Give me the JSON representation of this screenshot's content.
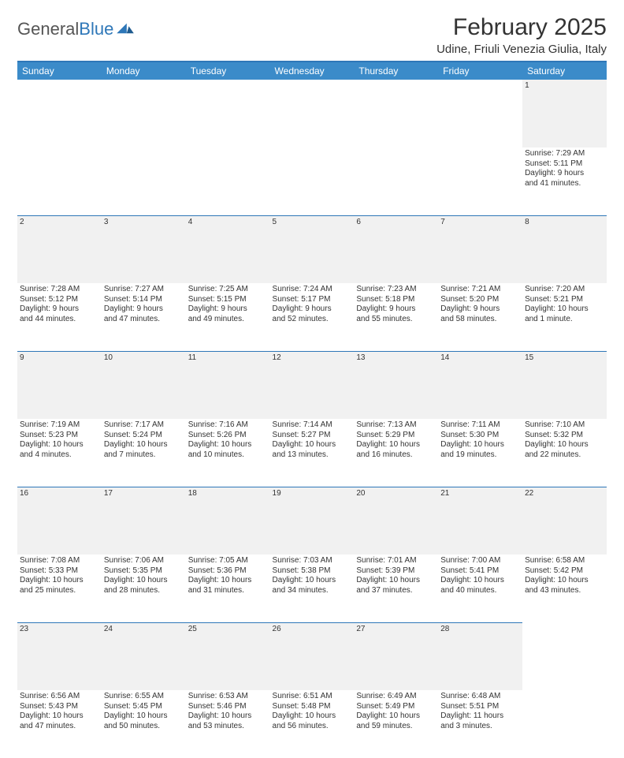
{
  "logo": {
    "text_gray": "General",
    "text_blue": "Blue"
  },
  "header": {
    "title": "February 2025",
    "location": "Udine, Friuli Venezia Giulia, Italy"
  },
  "colors": {
    "header_bar": "#3b8bc9",
    "divider": "#2e77b8",
    "daynum_bg": "#f1f1f1",
    "text": "#333333"
  },
  "weekdays": [
    "Sunday",
    "Monday",
    "Tuesday",
    "Wednesday",
    "Thursday",
    "Friday",
    "Saturday"
  ],
  "weeks": [
    {
      "nums": [
        "",
        "",
        "",
        "",
        "",
        "",
        "1"
      ],
      "cells": [
        null,
        null,
        null,
        null,
        null,
        null,
        {
          "sunrise": "Sunrise: 7:29 AM",
          "sunset": "Sunset: 5:11 PM",
          "day1": "Daylight: 9 hours",
          "day2": "and 41 minutes."
        }
      ]
    },
    {
      "nums": [
        "2",
        "3",
        "4",
        "5",
        "6",
        "7",
        "8"
      ],
      "cells": [
        {
          "sunrise": "Sunrise: 7:28 AM",
          "sunset": "Sunset: 5:12 PM",
          "day1": "Daylight: 9 hours",
          "day2": "and 44 minutes."
        },
        {
          "sunrise": "Sunrise: 7:27 AM",
          "sunset": "Sunset: 5:14 PM",
          "day1": "Daylight: 9 hours",
          "day2": "and 47 minutes."
        },
        {
          "sunrise": "Sunrise: 7:25 AM",
          "sunset": "Sunset: 5:15 PM",
          "day1": "Daylight: 9 hours",
          "day2": "and 49 minutes."
        },
        {
          "sunrise": "Sunrise: 7:24 AM",
          "sunset": "Sunset: 5:17 PM",
          "day1": "Daylight: 9 hours",
          "day2": "and 52 minutes."
        },
        {
          "sunrise": "Sunrise: 7:23 AM",
          "sunset": "Sunset: 5:18 PM",
          "day1": "Daylight: 9 hours",
          "day2": "and 55 minutes."
        },
        {
          "sunrise": "Sunrise: 7:21 AM",
          "sunset": "Sunset: 5:20 PM",
          "day1": "Daylight: 9 hours",
          "day2": "and 58 minutes."
        },
        {
          "sunrise": "Sunrise: 7:20 AM",
          "sunset": "Sunset: 5:21 PM",
          "day1": "Daylight: 10 hours",
          "day2": "and 1 minute."
        }
      ]
    },
    {
      "nums": [
        "9",
        "10",
        "11",
        "12",
        "13",
        "14",
        "15"
      ],
      "cells": [
        {
          "sunrise": "Sunrise: 7:19 AM",
          "sunset": "Sunset: 5:23 PM",
          "day1": "Daylight: 10 hours",
          "day2": "and 4 minutes."
        },
        {
          "sunrise": "Sunrise: 7:17 AM",
          "sunset": "Sunset: 5:24 PM",
          "day1": "Daylight: 10 hours",
          "day2": "and 7 minutes."
        },
        {
          "sunrise": "Sunrise: 7:16 AM",
          "sunset": "Sunset: 5:26 PM",
          "day1": "Daylight: 10 hours",
          "day2": "and 10 minutes."
        },
        {
          "sunrise": "Sunrise: 7:14 AM",
          "sunset": "Sunset: 5:27 PM",
          "day1": "Daylight: 10 hours",
          "day2": "and 13 minutes."
        },
        {
          "sunrise": "Sunrise: 7:13 AM",
          "sunset": "Sunset: 5:29 PM",
          "day1": "Daylight: 10 hours",
          "day2": "and 16 minutes."
        },
        {
          "sunrise": "Sunrise: 7:11 AM",
          "sunset": "Sunset: 5:30 PM",
          "day1": "Daylight: 10 hours",
          "day2": "and 19 minutes."
        },
        {
          "sunrise": "Sunrise: 7:10 AM",
          "sunset": "Sunset: 5:32 PM",
          "day1": "Daylight: 10 hours",
          "day2": "and 22 minutes."
        }
      ]
    },
    {
      "nums": [
        "16",
        "17",
        "18",
        "19",
        "20",
        "21",
        "22"
      ],
      "cells": [
        {
          "sunrise": "Sunrise: 7:08 AM",
          "sunset": "Sunset: 5:33 PM",
          "day1": "Daylight: 10 hours",
          "day2": "and 25 minutes."
        },
        {
          "sunrise": "Sunrise: 7:06 AM",
          "sunset": "Sunset: 5:35 PM",
          "day1": "Daylight: 10 hours",
          "day2": "and 28 minutes."
        },
        {
          "sunrise": "Sunrise: 7:05 AM",
          "sunset": "Sunset: 5:36 PM",
          "day1": "Daylight: 10 hours",
          "day2": "and 31 minutes."
        },
        {
          "sunrise": "Sunrise: 7:03 AM",
          "sunset": "Sunset: 5:38 PM",
          "day1": "Daylight: 10 hours",
          "day2": "and 34 minutes."
        },
        {
          "sunrise": "Sunrise: 7:01 AM",
          "sunset": "Sunset: 5:39 PM",
          "day1": "Daylight: 10 hours",
          "day2": "and 37 minutes."
        },
        {
          "sunrise": "Sunrise: 7:00 AM",
          "sunset": "Sunset: 5:41 PM",
          "day1": "Daylight: 10 hours",
          "day2": "and 40 minutes."
        },
        {
          "sunrise": "Sunrise: 6:58 AM",
          "sunset": "Sunset: 5:42 PM",
          "day1": "Daylight: 10 hours",
          "day2": "and 43 minutes."
        }
      ]
    },
    {
      "nums": [
        "23",
        "24",
        "25",
        "26",
        "27",
        "28",
        ""
      ],
      "cells": [
        {
          "sunrise": "Sunrise: 6:56 AM",
          "sunset": "Sunset: 5:43 PM",
          "day1": "Daylight: 10 hours",
          "day2": "and 47 minutes."
        },
        {
          "sunrise": "Sunrise: 6:55 AM",
          "sunset": "Sunset: 5:45 PM",
          "day1": "Daylight: 10 hours",
          "day2": "and 50 minutes."
        },
        {
          "sunrise": "Sunrise: 6:53 AM",
          "sunset": "Sunset: 5:46 PM",
          "day1": "Daylight: 10 hours",
          "day2": "and 53 minutes."
        },
        {
          "sunrise": "Sunrise: 6:51 AM",
          "sunset": "Sunset: 5:48 PM",
          "day1": "Daylight: 10 hours",
          "day2": "and 56 minutes."
        },
        {
          "sunrise": "Sunrise: 6:49 AM",
          "sunset": "Sunset: 5:49 PM",
          "day1": "Daylight: 10 hours",
          "day2": "and 59 minutes."
        },
        {
          "sunrise": "Sunrise: 6:48 AM",
          "sunset": "Sunset: 5:51 PM",
          "day1": "Daylight: 11 hours",
          "day2": "and 3 minutes."
        },
        null
      ]
    }
  ]
}
